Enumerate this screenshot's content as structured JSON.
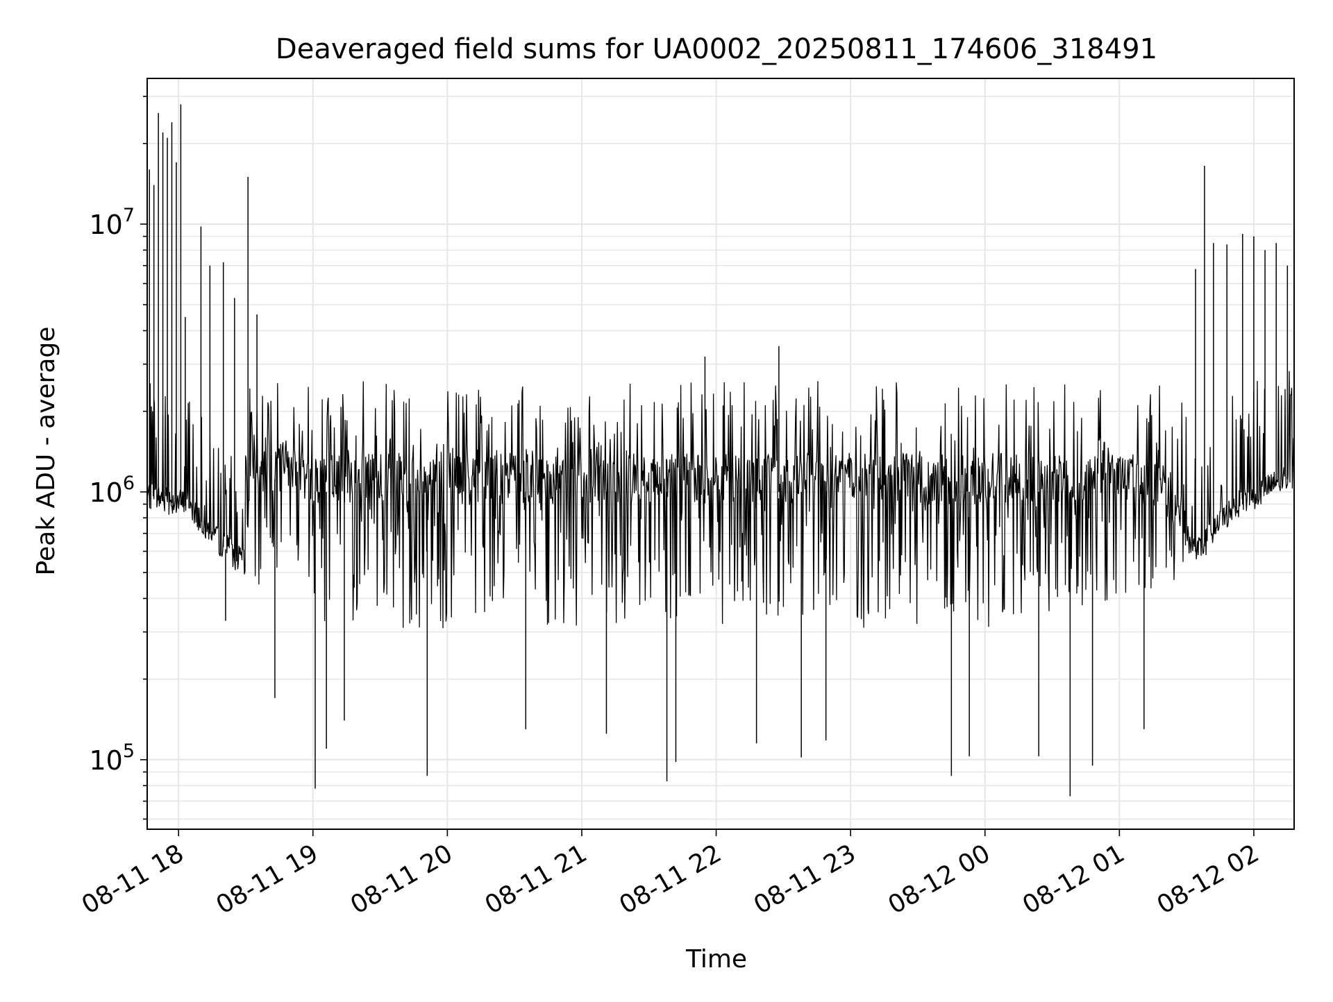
{
  "chart_data": {
    "type": "line",
    "title": "Deaveraged field sums for UA0002_20250811_174606_318491",
    "xlabel": "Time",
    "ylabel": "Peak ADU - average",
    "yscale": "log",
    "ylim": [
      55000,
      35000000
    ],
    "xlim": [
      "2025-08-11 17:46",
      "2025-08-12 02:18"
    ],
    "grid": true,
    "line_color": "#000000",
    "grid_color": "#e6e6e6",
    "x_ticks": [
      {
        "value": "2025-08-11 18:00",
        "label": "08-11 18"
      },
      {
        "value": "2025-08-11 19:00",
        "label": "08-11 19"
      },
      {
        "value": "2025-08-11 20:00",
        "label": "08-11 20"
      },
      {
        "value": "2025-08-11 21:00",
        "label": "08-11 21"
      },
      {
        "value": "2025-08-11 22:00",
        "label": "08-11 22"
      },
      {
        "value": "2025-08-11 23:00",
        "label": "08-11 23"
      },
      {
        "value": "2025-08-12 00:00",
        "label": "08-12 00"
      },
      {
        "value": "2025-08-12 01:00",
        "label": "08-12 01"
      },
      {
        "value": "2025-08-12 02:00",
        "label": "08-12 02"
      }
    ],
    "y_ticks": [
      {
        "value": 100000,
        "base": "10",
        "exp": "5"
      },
      {
        "value": 1000000,
        "base": "10",
        "exp": "6"
      },
      {
        "value": 10000000,
        "base": "10",
        "exp": "7"
      }
    ],
    "series": [
      {
        "baseline": [
          [
            "2025-08-11 17:46",
            950000
          ],
          [
            "2025-08-11 18:05",
            880000
          ],
          [
            "2025-08-11 18:15",
            680000
          ],
          [
            "2025-08-11 18:30",
            520000
          ],
          [
            "2025-08-11 18:32",
            1200000
          ],
          [
            "2025-08-11 19:00",
            1000000
          ],
          [
            "2025-08-12 00:00",
            1000000
          ],
          [
            "2025-08-12 01:15",
            1000000
          ],
          [
            "2025-08-12 01:35",
            580000
          ],
          [
            "2025-08-12 01:50",
            850000
          ],
          [
            "2025-08-12 02:18",
            1150000
          ]
        ],
        "band_top": [
          [
            "2025-08-11 18:32",
            2600000
          ],
          [
            "2025-08-11 19:00",
            2700000
          ],
          [
            "2025-08-11 20:00",
            2500000
          ],
          [
            "2025-08-11 22:00",
            2600000
          ],
          [
            "2025-08-12 00:00",
            2600000
          ],
          [
            "2025-08-12 01:30",
            2500000
          ]
        ],
        "band_bottom": [
          [
            "2025-08-11 18:32",
            450000
          ],
          [
            "2025-08-11 19:00",
            300000
          ],
          [
            "2025-08-11 22:00",
            320000
          ],
          [
            "2025-08-12 00:00",
            300000
          ],
          [
            "2025-08-12 01:30",
            450000
          ]
        ],
        "spikes_up": [
          [
            "2025-08-11 17:47",
            16000000
          ],
          [
            "2025-08-11 17:49",
            14000000
          ],
          [
            "2025-08-11 17:51",
            26000000
          ],
          [
            "2025-08-11 17:53",
            22000000
          ],
          [
            "2025-08-11 17:55",
            21000000
          ],
          [
            "2025-08-11 17:57",
            24000000
          ],
          [
            "2025-08-11 17:59",
            17000000
          ],
          [
            "2025-08-11 18:01",
            28000000
          ],
          [
            "2025-08-11 18:03",
            4500000
          ],
          [
            "2025-08-11 18:10",
            9800000
          ],
          [
            "2025-08-11 18:14",
            7000000
          ],
          [
            "2025-08-11 18:20",
            7200000
          ],
          [
            "2025-08-11 18:25",
            5300000
          ],
          [
            "2025-08-11 18:31",
            15000000
          ],
          [
            "2025-08-11 18:35",
            4600000
          ],
          [
            "2025-08-11 21:55",
            3200000
          ],
          [
            "2025-08-11 22:28",
            3500000
          ],
          [
            "2025-08-12 01:34",
            6800000
          ],
          [
            "2025-08-12 01:38",
            16500000
          ],
          [
            "2025-08-12 01:42",
            8500000
          ],
          [
            "2025-08-12 01:48",
            8400000
          ],
          [
            "2025-08-12 01:55",
            9200000
          ],
          [
            "2025-08-12 02:00",
            9000000
          ],
          [
            "2025-08-12 02:05",
            8000000
          ],
          [
            "2025-08-12 02:10",
            8500000
          ],
          [
            "2025-08-12 02:15",
            7000000
          ]
        ],
        "spikes_down": [
          [
            "2025-08-11 18:21",
            330000
          ],
          [
            "2025-08-11 18:43",
            170000
          ],
          [
            "2025-08-11 19:01",
            78000
          ],
          [
            "2025-08-11 19:06",
            110000
          ],
          [
            "2025-08-11 19:14",
            140000
          ],
          [
            "2025-08-11 19:51",
            87000
          ],
          [
            "2025-08-11 20:35",
            130000
          ],
          [
            "2025-08-11 21:11",
            125000
          ],
          [
            "2025-08-11 21:38",
            83000
          ],
          [
            "2025-08-11 21:42",
            98000
          ],
          [
            "2025-08-11 22:18",
            115000
          ],
          [
            "2025-08-11 22:38",
            102000
          ],
          [
            "2025-08-11 22:49",
            118000
          ],
          [
            "2025-08-11 23:45",
            87000
          ],
          [
            "2025-08-11 23:53",
            103000
          ],
          [
            "2025-08-12 00:24",
            103000
          ],
          [
            "2025-08-12 00:38",
            73000
          ],
          [
            "2025-08-12 00:48",
            95000
          ],
          [
            "2025-08-12 01:11",
            130000
          ]
        ]
      }
    ]
  }
}
